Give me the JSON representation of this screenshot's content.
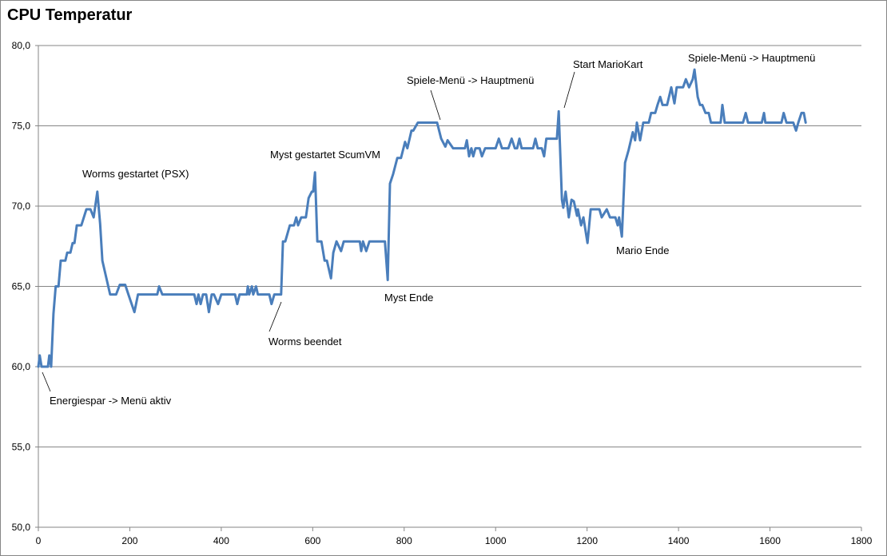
{
  "chart_data": {
    "type": "line",
    "title": "CPU Temperatur",
    "xlabel": "",
    "ylabel": "",
    "xlim": [
      0,
      1800
    ],
    "ylim": [
      50,
      80
    ],
    "grid": "horizontal",
    "legend": "none",
    "line_color": "#4a7ebb",
    "x_ticks": [
      0,
      200,
      400,
      600,
      800,
      1000,
      1200,
      1400,
      1600,
      1800
    ],
    "x_tick_labels": [
      "0",
      "200",
      "400",
      "600",
      "800",
      "1000",
      "1200",
      "1400",
      "1600",
      "1800"
    ],
    "y_ticks": [
      50,
      55,
      60,
      65,
      70,
      75,
      80
    ],
    "y_tick_labels": [
      "50,0",
      "55,0",
      "60,0",
      "65,0",
      "70,0",
      "75,0",
      "80,0"
    ],
    "series": [
      {
        "name": "CPU Temperatur",
        "points": [
          [
            0,
            60.0
          ],
          [
            3,
            60.7
          ],
          [
            7,
            60.0
          ],
          [
            21,
            60.0
          ],
          [
            24,
            60.7
          ],
          [
            28,
            60.0
          ],
          [
            33,
            63.3
          ],
          [
            38,
            65.0
          ],
          [
            44,
            65.0
          ],
          [
            49,
            66.6
          ],
          [
            59,
            66.6
          ],
          [
            63,
            67.1
          ],
          [
            70,
            67.1
          ],
          [
            75,
            67.7
          ],
          [
            79,
            67.7
          ],
          [
            84,
            68.8
          ],
          [
            94,
            68.8
          ],
          [
            105,
            69.8
          ],
          [
            114,
            69.8
          ],
          [
            121,
            69.3
          ],
          [
            129,
            70.9
          ],
          [
            135,
            68.9
          ],
          [
            140,
            66.6
          ],
          [
            157,
            64.5
          ],
          [
            170,
            64.5
          ],
          [
            178,
            65.1
          ],
          [
            190,
            65.1
          ],
          [
            197,
            64.5
          ],
          [
            210,
            63.4
          ],
          [
            218,
            64.5
          ],
          [
            260,
            64.5
          ],
          [
            264,
            65.0
          ],
          [
            271,
            64.5
          ],
          [
            341,
            64.5
          ],
          [
            346,
            63.9
          ],
          [
            350,
            64.5
          ],
          [
            355,
            63.9
          ],
          [
            360,
            64.5
          ],
          [
            367,
            64.5
          ],
          [
            373,
            63.4
          ],
          [
            379,
            64.5
          ],
          [
            384,
            64.5
          ],
          [
            393,
            63.9
          ],
          [
            400,
            64.5
          ],
          [
            430,
            64.5
          ],
          [
            435,
            63.9
          ],
          [
            440,
            64.5
          ],
          [
            456,
            64.5
          ],
          [
            458,
            65.0
          ],
          [
            461,
            64.5
          ],
          [
            467,
            65.0
          ],
          [
            470,
            64.5
          ],
          [
            476,
            65.0
          ],
          [
            480,
            64.5
          ],
          [
            505,
            64.5
          ],
          [
            510,
            63.9
          ],
          [
            516,
            64.5
          ],
          [
            531,
            64.5
          ],
          [
            535,
            67.8
          ],
          [
            540,
            67.8
          ],
          [
            550,
            68.8
          ],
          [
            559,
            68.8
          ],
          [
            564,
            69.3
          ],
          [
            568,
            68.8
          ],
          [
            575,
            69.3
          ],
          [
            585,
            69.3
          ],
          [
            591,
            70.5
          ],
          [
            598,
            70.9
          ],
          [
            601,
            70.9
          ],
          [
            605,
            72.1
          ],
          [
            610,
            67.8
          ],
          [
            619,
            67.8
          ],
          [
            626,
            66.6
          ],
          [
            631,
            66.6
          ],
          [
            640,
            65.5
          ],
          [
            645,
            67.1
          ],
          [
            652,
            67.8
          ],
          [
            662,
            67.2
          ],
          [
            668,
            67.8
          ],
          [
            703,
            67.8
          ],
          [
            706,
            67.2
          ],
          [
            710,
            67.8
          ],
          [
            717,
            67.2
          ],
          [
            724,
            67.8
          ],
          [
            758,
            67.8
          ],
          [
            764,
            65.4
          ],
          [
            769,
            71.4
          ],
          [
            776,
            72.0
          ],
          [
            785,
            73.0
          ],
          [
            793,
            73.0
          ],
          [
            802,
            74.0
          ],
          [
            807,
            73.6
          ],
          [
            816,
            74.7
          ],
          [
            820,
            74.7
          ],
          [
            830,
            75.2
          ],
          [
            872,
            75.2
          ],
          [
            881,
            74.2
          ],
          [
            890,
            73.7
          ],
          [
            895,
            74.1
          ],
          [
            907,
            73.6
          ],
          [
            933,
            73.6
          ],
          [
            937,
            74.1
          ],
          [
            942,
            73.1
          ],
          [
            947,
            73.6
          ],
          [
            951,
            73.1
          ],
          [
            956,
            73.6
          ],
          [
            965,
            73.6
          ],
          [
            970,
            73.1
          ],
          [
            977,
            73.6
          ],
          [
            1000,
            73.6
          ],
          [
            1007,
            74.2
          ],
          [
            1014,
            73.6
          ],
          [
            1028,
            73.6
          ],
          [
            1035,
            74.2
          ],
          [
            1042,
            73.6
          ],
          [
            1047,
            73.6
          ],
          [
            1052,
            74.2
          ],
          [
            1057,
            73.6
          ],
          [
            1082,
            73.6
          ],
          [
            1087,
            74.2
          ],
          [
            1092,
            73.6
          ],
          [
            1101,
            73.6
          ],
          [
            1106,
            73.1
          ],
          [
            1111,
            74.2
          ],
          [
            1134,
            74.2
          ],
          [
            1138,
            75.9
          ],
          [
            1145,
            70.4
          ],
          [
            1148,
            69.9
          ],
          [
            1153,
            70.9
          ],
          [
            1160,
            69.3
          ],
          [
            1166,
            70.4
          ],
          [
            1171,
            70.3
          ],
          [
            1178,
            69.4
          ],
          [
            1180,
            69.8
          ],
          [
            1187,
            68.8
          ],
          [
            1192,
            69.3
          ],
          [
            1201,
            67.7
          ],
          [
            1208,
            69.8
          ],
          [
            1227,
            69.8
          ],
          [
            1232,
            69.3
          ],
          [
            1243,
            69.8
          ],
          [
            1250,
            69.3
          ],
          [
            1262,
            69.3
          ],
          [
            1267,
            68.8
          ],
          [
            1270,
            69.3
          ],
          [
            1276,
            68.1
          ],
          [
            1283,
            72.7
          ],
          [
            1291,
            73.5
          ],
          [
            1300,
            74.6
          ],
          [
            1305,
            74.1
          ],
          [
            1309,
            75.2
          ],
          [
            1316,
            74.1
          ],
          [
            1323,
            75.2
          ],
          [
            1335,
            75.2
          ],
          [
            1340,
            75.8
          ],
          [
            1349,
            75.8
          ],
          [
            1354,
            76.3
          ],
          [
            1360,
            76.8
          ],
          [
            1365,
            76.3
          ],
          [
            1375,
            76.3
          ],
          [
            1384,
            77.4
          ],
          [
            1391,
            76.4
          ],
          [
            1396,
            77.4
          ],
          [
            1410,
            77.4
          ],
          [
            1416,
            77.9
          ],
          [
            1423,
            77.4
          ],
          [
            1431,
            77.9
          ],
          [
            1435,
            78.5
          ],
          [
            1442,
            76.8
          ],
          [
            1447,
            76.3
          ],
          [
            1452,
            76.3
          ],
          [
            1459,
            75.8
          ],
          [
            1466,
            75.8
          ],
          [
            1471,
            75.2
          ],
          [
            1492,
            75.2
          ],
          [
            1496,
            76.3
          ],
          [
            1501,
            75.2
          ],
          [
            1541,
            75.2
          ],
          [
            1547,
            75.8
          ],
          [
            1552,
            75.2
          ],
          [
            1582,
            75.2
          ],
          [
            1587,
            75.8
          ],
          [
            1590,
            75.2
          ],
          [
            1625,
            75.2
          ],
          [
            1630,
            75.8
          ],
          [
            1636,
            75.2
          ],
          [
            1651,
            75.2
          ],
          [
            1657,
            74.7
          ],
          [
            1662,
            75.2
          ],
          [
            1669,
            75.8
          ],
          [
            1674,
            75.8
          ],
          [
            1678,
            75.2
          ]
        ]
      }
    ],
    "annotations": [
      "Energiespar -> Menü aktiv",
      "Worms gestartet (PSX)",
      "Worms beendet",
      "Myst gestartet ScumVM",
      "Myst Ende",
      "Spiele-Menü -> Hauptmenü",
      "Start MarioKart",
      "Mario Ende",
      "Spiele-Menü -> Hauptmenü"
    ]
  }
}
